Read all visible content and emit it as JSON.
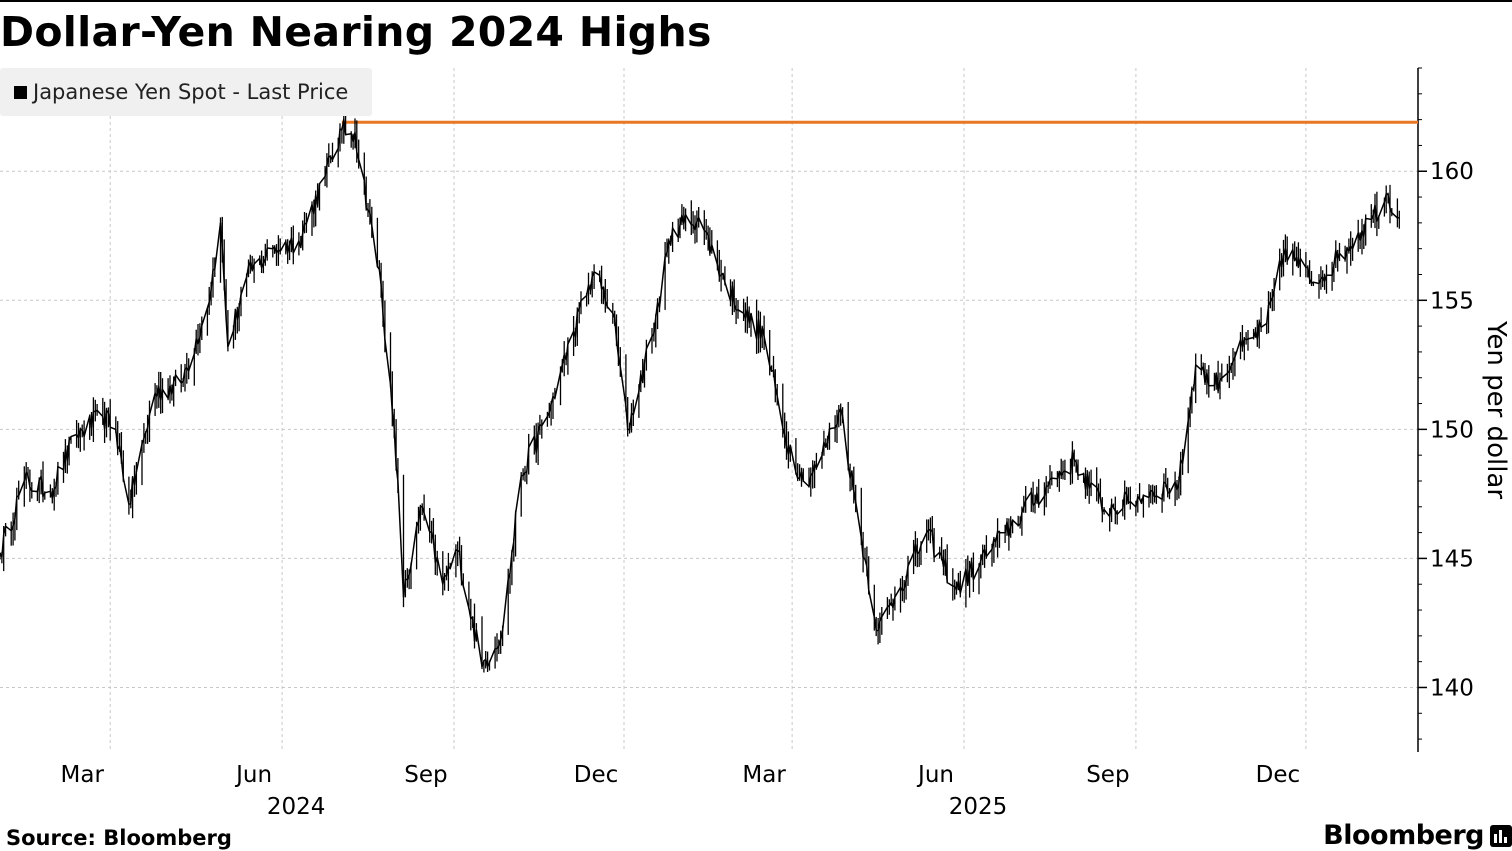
{
  "title": "Dollar-Yen Nearing 2024 Highs",
  "legend": {
    "label": "Japanese Yen Spot - Last Price"
  },
  "footer": {
    "source": "Source: Bloomberg",
    "brand": "Bloomberg"
  },
  "colors": {
    "series": "#000000",
    "reference_line": "#e87722",
    "grid": "#c8c8c8"
  },
  "chart_data": {
    "type": "line",
    "title": "Dollar-Yen Nearing 2024 Highs",
    "ylabel": "Yen per dollar",
    "xlabel": "",
    "ylim": [
      137.5,
      164
    ],
    "y_ticks": [
      140,
      145,
      150,
      155,
      160
    ],
    "x_ticks": [
      {
        "label": "Mar",
        "date": "2024-03-01"
      },
      {
        "label": "Jun",
        "date": "2024-06-01"
      },
      {
        "label": "Sep",
        "date": "2024-09-01"
      },
      {
        "label": "Dec",
        "date": "2024-12-01"
      },
      {
        "label": "Mar",
        "date": "2025-03-01"
      },
      {
        "label": "Jun",
        "date": "2025-06-01"
      },
      {
        "label": "Sep",
        "date": "2025-09-01"
      },
      {
        "label": "Dec",
        "date": "2025-12-01"
      }
    ],
    "year_labels": [
      {
        "label": "2024",
        "date": "2024-06-01"
      },
      {
        "label": "2025",
        "date": "2025-06-01"
      }
    ],
    "x_range": [
      "2024-01-02",
      "2026-01-30"
    ],
    "grid": true,
    "legend_position": "top-left",
    "reference_line": {
      "y": 161.9,
      "from": "2024-07-03",
      "to": "2026-01-30"
    },
    "series": [
      {
        "name": "Japanese Yen Spot - Last Price",
        "x": [
          "2024-01-02",
          "2024-01-15",
          "2024-01-29",
          "2024-02-12",
          "2024-02-26",
          "2024-03-04",
          "2024-03-11",
          "2024-03-25",
          "2024-04-08",
          "2024-04-22",
          "2024-04-29",
          "2024-05-03",
          "2024-05-13",
          "2024-05-27",
          "2024-06-10",
          "2024-06-24",
          "2024-07-03",
          "2024-07-10",
          "2024-07-24",
          "2024-08-02",
          "2024-08-05",
          "2024-08-15",
          "2024-08-26",
          "2024-09-03",
          "2024-09-16",
          "2024-09-27",
          "2024-10-07",
          "2024-10-21",
          "2024-11-04",
          "2024-11-15",
          "2024-11-25",
          "2024-12-03",
          "2024-12-16",
          "2024-12-27",
          "2025-01-10",
          "2025-01-24",
          "2025-02-03",
          "2025-02-14",
          "2025-02-25",
          "2025-03-07",
          "2025-03-14",
          "2025-03-27",
          "2025-04-07",
          "2025-04-16",
          "2025-04-25",
          "2025-05-12",
          "2025-05-28",
          "2025-06-10",
          "2025-06-23",
          "2025-07-15",
          "2025-07-30",
          "2025-08-15",
          "2025-08-29",
          "2025-09-10",
          "2025-09-24",
          "2025-10-03",
          "2025-10-13",
          "2025-10-24",
          "2025-11-10",
          "2025-11-20",
          "2025-12-05",
          "2025-12-18",
          "2026-01-06",
          "2026-01-14",
          "2026-01-20"
        ],
        "y": [
          145.2,
          148.0,
          147.6,
          149.8,
          150.5,
          150.0,
          147.1,
          151.4,
          151.8,
          154.7,
          158.0,
          153.2,
          155.9,
          157.0,
          157.3,
          159.8,
          161.6,
          161.5,
          155.6,
          148.0,
          143.5,
          147.0,
          144.0,
          145.3,
          140.8,
          142.2,
          148.2,
          150.5,
          153.8,
          156.1,
          154.5,
          150.0,
          153.6,
          157.8,
          158.2,
          155.7,
          154.5,
          153.6,
          149.8,
          148.0,
          148.5,
          150.8,
          145.8,
          142.2,
          143.5,
          146.0,
          143.8,
          144.9,
          146.0,
          147.8,
          148.8,
          146.9,
          147.2,
          147.6,
          147.9,
          152.5,
          151.7,
          152.8,
          154.1,
          157.0,
          155.7,
          156.6,
          158.3,
          159.1,
          158.2
        ]
      }
    ]
  }
}
